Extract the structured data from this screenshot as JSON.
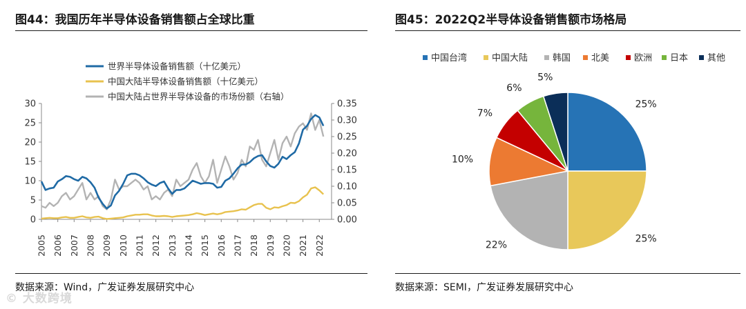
{
  "left": {
    "title": "图44：我国历年半导体设备销售额占全球比重",
    "source": "数据来源：Wind，广发证券发展研究中心"
  },
  "right": {
    "title": "图45：2022Q2半导体设备销售额市场格局",
    "source": "数据来源：SEMI，广发证券发展研究中心"
  },
  "watermark": "© 大数跨境",
  "chart_data": [
    {
      "type": "line",
      "title": "我国历年半导体设备销售额占全球比重",
      "x_tick_labels": [
        "2005",
        "2006",
        "2007",
        "2008",
        "2009",
        "2010",
        "2011",
        "2012",
        "2013",
        "2014",
        "2015",
        "2016",
        "2017",
        "2018",
        "2019",
        "2020",
        "2021",
        "2022"
      ],
      "y_left": {
        "ticks": [
          "0",
          "5",
          "10",
          "15",
          "20",
          "25",
          "30"
        ],
        "ylim": [
          0,
          30
        ]
      },
      "y_right": {
        "ticks": [
          "0.00",
          "0.05",
          "0.10",
          "0.15",
          "0.20",
          "0.25",
          "0.30",
          "0.35"
        ],
        "ylim": [
          0,
          0.35
        ]
      },
      "x_range": [
        2005.0,
        2022.75
      ],
      "series": [
        {
          "name": "世界半导体设备销售额（十亿美元）",
          "axis": "left",
          "color": "#1f6aa5",
          "x": [
            2005.0,
            2005.25,
            2005.5,
            2005.75,
            2006.0,
            2006.25,
            2006.5,
            2006.75,
            2007.0,
            2007.25,
            2007.5,
            2007.75,
            2008.0,
            2008.25,
            2008.5,
            2008.75,
            2009.0,
            2009.25,
            2009.5,
            2009.75,
            2010.0,
            2010.25,
            2010.5,
            2010.75,
            2011.0,
            2011.25,
            2011.5,
            2011.75,
            2012.0,
            2012.25,
            2012.5,
            2012.75,
            2013.0,
            2013.25,
            2013.5,
            2013.75,
            2014.0,
            2014.25,
            2014.5,
            2014.75,
            2015.0,
            2015.25,
            2015.5,
            2015.75,
            2016.0,
            2016.25,
            2016.5,
            2016.75,
            2017.0,
            2017.25,
            2017.5,
            2017.75,
            2018.0,
            2018.25,
            2018.5,
            2018.75,
            2019.0,
            2019.25,
            2019.5,
            2019.75,
            2020.0,
            2020.25,
            2020.5,
            2020.75,
            2021.0,
            2021.25,
            2021.5,
            2021.75,
            2022.0,
            2022.25
          ],
          "values": [
            9.8,
            7.6,
            8.0,
            8.2,
            9.8,
            10.4,
            11.2,
            11.0,
            10.4,
            10.0,
            11.0,
            10.6,
            9.6,
            8.2,
            5.6,
            4.0,
            2.8,
            3.6,
            6.2,
            7.4,
            9.2,
            11.4,
            11.8,
            11.8,
            11.4,
            10.6,
            9.6,
            9.0,
            8.6,
            9.4,
            9.8,
            8.0,
            6.6,
            7.6,
            7.6,
            8.0,
            9.0,
            10.0,
            9.6,
            9.2,
            9.4,
            9.4,
            9.2,
            8.2,
            8.4,
            10.0,
            10.6,
            11.8,
            13.2,
            14.2,
            14.2,
            14.8,
            15.8,
            16.4,
            16.6,
            15.0,
            13.8,
            13.4,
            14.4,
            16.2,
            15.6,
            16.6,
            17.4,
            19.6,
            23.2,
            24.2,
            26.0,
            27.0,
            26.4,
            24.2
          ]
        },
        {
          "name": "中国大陆半导体设备销售额（十亿美元）",
          "axis": "left",
          "color": "#e8c24e",
          "x": [
            2005.0,
            2005.25,
            2005.5,
            2005.75,
            2006.0,
            2006.25,
            2006.5,
            2006.75,
            2007.0,
            2007.25,
            2007.5,
            2007.75,
            2008.0,
            2008.25,
            2008.5,
            2008.75,
            2009.0,
            2009.25,
            2009.5,
            2009.75,
            2010.0,
            2010.25,
            2010.5,
            2010.75,
            2011.0,
            2011.25,
            2011.5,
            2011.75,
            2012.0,
            2012.25,
            2012.5,
            2012.75,
            2013.0,
            2013.25,
            2013.5,
            2013.75,
            2014.0,
            2014.25,
            2014.5,
            2014.75,
            2015.0,
            2015.25,
            2015.5,
            2015.75,
            2016.0,
            2016.25,
            2016.5,
            2016.75,
            2017.0,
            2017.25,
            2017.5,
            2017.75,
            2018.0,
            2018.25,
            2018.5,
            2018.75,
            2019.0,
            2019.25,
            2019.5,
            2019.75,
            2020.0,
            2020.25,
            2020.5,
            2020.75,
            2021.0,
            2021.25,
            2021.5,
            2021.75,
            2022.0,
            2022.25
          ],
          "values": [
            0.2,
            0.3,
            0.4,
            0.3,
            0.3,
            0.5,
            0.6,
            0.4,
            0.4,
            0.6,
            0.8,
            0.5,
            0.4,
            0.6,
            0.7,
            0.3,
            0.1,
            0.2,
            0.3,
            0.4,
            0.5,
            0.8,
            1.0,
            1.2,
            1.2,
            1.3,
            1.3,
            1.0,
            0.8,
            0.8,
            0.9,
            0.8,
            0.6,
            0.8,
            0.9,
            1.0,
            1.1,
            1.3,
            1.6,
            1.4,
            1.1,
            1.3,
            1.5,
            1.3,
            1.5,
            1.9,
            2.0,
            2.1,
            2.3,
            2.6,
            2.5,
            3.1,
            3.7,
            4.0,
            4.0,
            3.0,
            2.6,
            3.1,
            3.0,
            3.4,
            3.7,
            4.3,
            4.2,
            4.7,
            5.7,
            6.4,
            8.0,
            8.3,
            7.5,
            6.5
          ]
        },
        {
          "name": "中国大陆占世界半导体设备的市场份额（右轴）",
          "axis": "right",
          "color": "#b3b3b3",
          "x": [
            2005.0,
            2005.25,
            2005.5,
            2005.75,
            2006.0,
            2006.25,
            2006.5,
            2006.75,
            2007.0,
            2007.25,
            2007.5,
            2007.75,
            2008.0,
            2008.25,
            2008.5,
            2008.75,
            2009.0,
            2009.25,
            2009.5,
            2009.75,
            2010.0,
            2010.25,
            2010.5,
            2010.75,
            2011.0,
            2011.25,
            2011.5,
            2011.75,
            2012.0,
            2012.25,
            2012.5,
            2012.75,
            2013.0,
            2013.25,
            2013.5,
            2013.75,
            2014.0,
            2014.25,
            2014.5,
            2014.75,
            2015.0,
            2015.25,
            2015.5,
            2015.75,
            2016.0,
            2016.25,
            2016.5,
            2016.75,
            2017.0,
            2017.25,
            2017.5,
            2017.75,
            2018.0,
            2018.25,
            2018.5,
            2018.75,
            2019.0,
            2019.25,
            2019.5,
            2019.75,
            2020.0,
            2020.25,
            2020.5,
            2020.75,
            2021.0,
            2021.25,
            2021.5,
            2021.75,
            2022.0,
            2022.25
          ],
          "values": [
            0.04,
            0.035,
            0.05,
            0.04,
            0.05,
            0.07,
            0.08,
            0.06,
            0.07,
            0.09,
            0.11,
            0.06,
            0.08,
            0.06,
            0.07,
            0.04,
            0.03,
            0.06,
            0.12,
            0.09,
            0.1,
            0.1,
            0.11,
            0.12,
            0.11,
            0.09,
            0.1,
            0.06,
            0.07,
            0.06,
            0.08,
            0.09,
            0.07,
            0.12,
            0.1,
            0.11,
            0.12,
            0.15,
            0.17,
            0.13,
            0.11,
            0.13,
            0.18,
            0.11,
            0.15,
            0.19,
            0.16,
            0.12,
            0.14,
            0.18,
            0.16,
            0.22,
            0.21,
            0.24,
            0.18,
            0.16,
            0.2,
            0.24,
            0.18,
            0.23,
            0.25,
            0.22,
            0.26,
            0.28,
            0.29,
            0.27,
            0.32,
            0.27,
            0.3,
            0.25
          ]
        }
      ]
    },
    {
      "type": "pie",
      "title": "2022Q2半导体设备销售额市场格局",
      "categories": [
        "中国台湾",
        "中国大陆",
        "韩国",
        "北美",
        "欧洲",
        "日本",
        "其他"
      ],
      "values": [
        25,
        25,
        22,
        10,
        7,
        6,
        5
      ],
      "labels": [
        "25%",
        "25%",
        "22%",
        "10%",
        "7%",
        "6%",
        "5%"
      ],
      "colors": [
        "#2673b5",
        "#e8c85a",
        "#b3b3b3",
        "#ec7a32",
        "#c40000",
        "#76b53c",
        "#0b2e58"
      ],
      "legend_position": "top"
    }
  ]
}
